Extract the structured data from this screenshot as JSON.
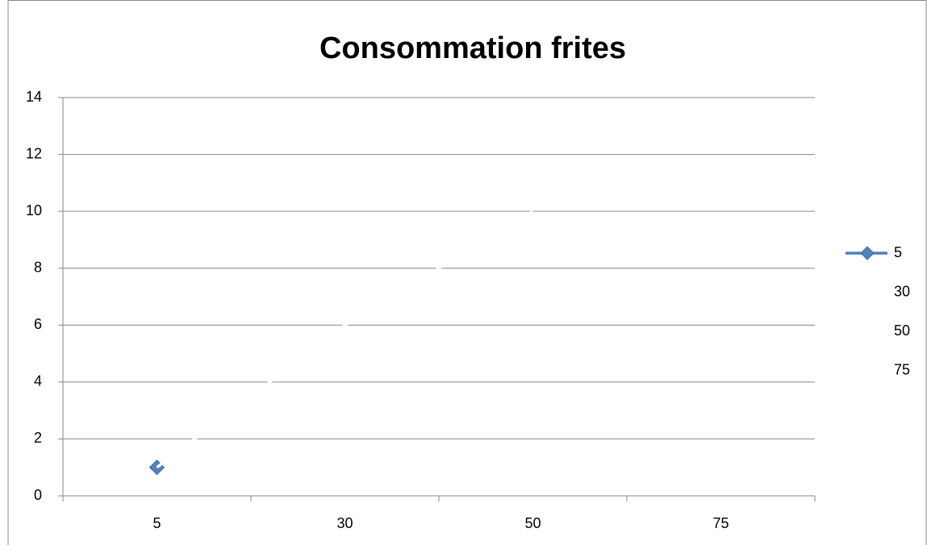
{
  "chart_data": {
    "type": "line",
    "title": "Consommation frites",
    "categories": [
      "5",
      "30",
      "50",
      "75"
    ],
    "series": [
      {
        "name": "5",
        "color": "#4f81bd",
        "marker": "diamond",
        "values": [
          1,
          null,
          null,
          null
        ]
      },
      {
        "name": "30",
        "color": "#ffffff",
        "values": [
          1,
          6,
          10,
          null
        ]
      },
      {
        "name": "50",
        "color": "#ffffff",
        "values": [
          null,
          null,
          null,
          null
        ]
      },
      {
        "name": "75",
        "color": "#ffffff",
        "values": [
          null,
          null,
          null,
          null
        ]
      }
    ],
    "ylim": [
      0,
      14
    ],
    "yticks": [
      0,
      2,
      4,
      6,
      8,
      10,
      12,
      14
    ],
    "grid": true,
    "legend": "right"
  }
}
